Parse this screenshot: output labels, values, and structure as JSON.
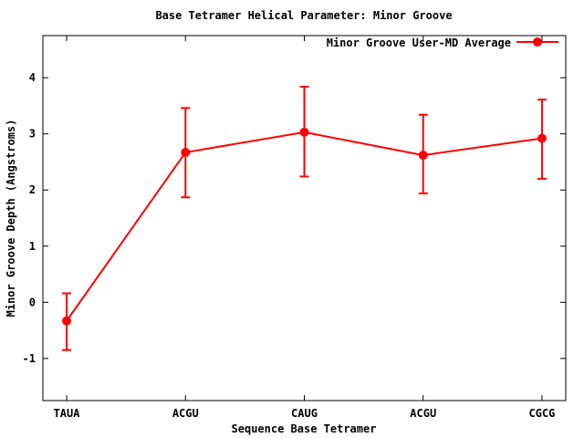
{
  "chart_data": {
    "type": "line",
    "title": "Base Tetramer Helical Parameter: Minor Groove",
    "xlabel": "Sequence Base Tetramer",
    "ylabel": "Minor Groove Depth (Angstroms)",
    "categories": [
      "TAUA",
      "ACGU",
      "CAUG",
      "ACGU",
      "CGCG"
    ],
    "series": [
      {
        "name": "Minor Groove User-MD Average",
        "values": [
          -0.33,
          2.67,
          3.03,
          2.62,
          2.92
        ],
        "error_low": [
          -0.85,
          1.87,
          2.24,
          1.94,
          2.2
        ],
        "error_high": [
          0.16,
          3.46,
          3.84,
          3.34,
          3.61
        ],
        "color": "#ff0000",
        "marker": "filled-circle",
        "style": "linespoints-errorbars"
      }
    ],
    "y_ticks": [
      -1,
      0,
      1,
      2,
      3,
      4
    ],
    "ylim": [
      -1.75,
      4.75
    ],
    "x_category_lim": [
      0.8,
      5.2
    ],
    "grid": false,
    "legend_position": "top-right-inside",
    "axis_color": "#000000",
    "background_color": "#ffffff"
  }
}
